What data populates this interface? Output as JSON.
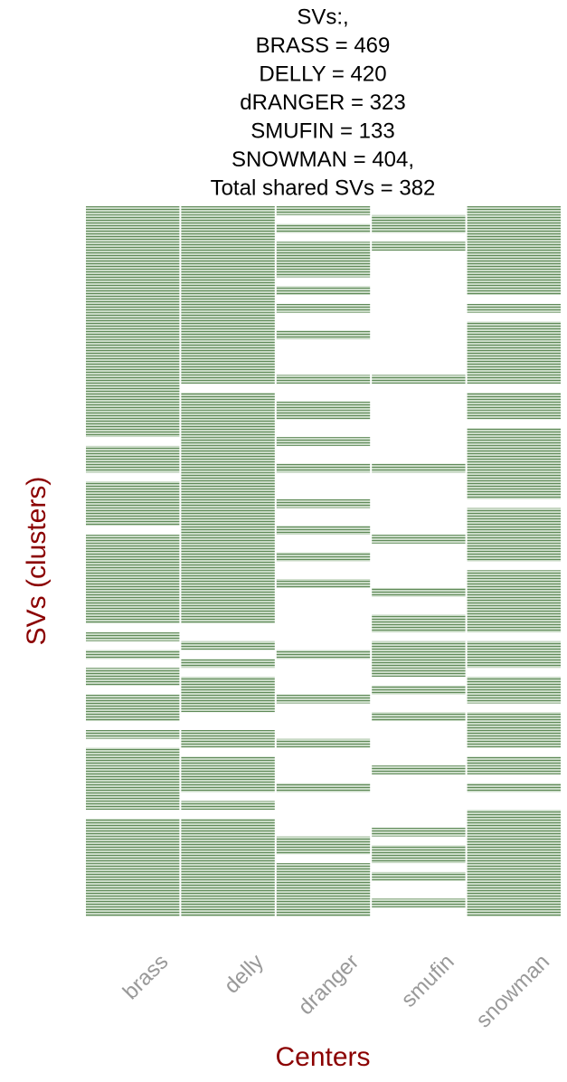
{
  "chart_data": {
    "type": "heatmap",
    "title": [
      "SVs:,",
      "BRASS = 469",
      "DELLY = 420",
      "dRANGER = 323",
      "SMUFIN = 133",
      "SNOWMAN = 404,",
      "Total shared SVs = 382"
    ],
    "ylabel": "SVs (clusters)",
    "xlabel": "Centers",
    "categories": [
      "brass",
      "delly",
      "dranger",
      "smufin",
      "snowman"
    ],
    "color": "#5f8a58",
    "values": [
      [
        1,
        1,
        1,
        1,
        1,
        1,
        1,
        1,
        1,
        1,
        1,
        1,
        1,
        1,
        1,
        1,
        1,
        1,
        1,
        1,
        1,
        1,
        1,
        1,
        1,
        1,
        0,
        1,
        1,
        1,
        0,
        1,
        1,
        1,
        1,
        1,
        0,
        1,
        1,
        1,
        1,
        1,
        1,
        1,
        1,
        1,
        1,
        0,
        1,
        0,
        1,
        0,
        1,
        1,
        0,
        1,
        1,
        1,
        0,
        1,
        0,
        1,
        1,
        1,
        1,
        1,
        1,
        1,
        0,
        1,
        1,
        1,
        1,
        1,
        1,
        1,
        1,
        1,
        1,
        1
      ],
      [
        1,
        1,
        1,
        1,
        1,
        1,
        1,
        1,
        1,
        1,
        1,
        1,
        1,
        1,
        1,
        1,
        1,
        1,
        1,
        1,
        0,
        1,
        1,
        1,
        1,
        1,
        1,
        1,
        1,
        1,
        1,
        1,
        1,
        1,
        1,
        1,
        1,
        1,
        1,
        1,
        1,
        1,
        1,
        1,
        1,
        1,
        1,
        0,
        0,
        1,
        0,
        1,
        0,
        1,
        1,
        1,
        1,
        0,
        0,
        1,
        1,
        0,
        1,
        1,
        1,
        1,
        0,
        1,
        0,
        1,
        1,
        1,
        1,
        1,
        1,
        1,
        1,
        1,
        1,
        1
      ],
      [
        1,
        0,
        1,
        0,
        1,
        1,
        1,
        1,
        0,
        1,
        0,
        1,
        0,
        0,
        1,
        0,
        0,
        0,
        0,
        1,
        0,
        0,
        1,
        1,
        0,
        0,
        1,
        0,
        0,
        1,
        0,
        0,
        0,
        1,
        0,
        0,
        1,
        0,
        0,
        1,
        0,
        0,
        1,
        0,
        0,
        0,
        0,
        0,
        0,
        0,
        1,
        0,
        0,
        0,
        0,
        1,
        0,
        0,
        0,
        0,
        1,
        0,
        0,
        0,
        0,
        1,
        0,
        0,
        0,
        0,
        0,
        1,
        1,
        0,
        1,
        1,
        1,
        1,
        1,
        1
      ],
      [
        0,
        1,
        1,
        0,
        1,
        0,
        0,
        0,
        0,
        0,
        0,
        0,
        0,
        0,
        0,
        0,
        0,
        0,
        0,
        1,
        0,
        0,
        0,
        0,
        0,
        0,
        0,
        0,
        0,
        1,
        0,
        0,
        0,
        0,
        0,
        0,
        0,
        1,
        0,
        0,
        0,
        0,
        0,
        1,
        0,
        0,
        1,
        1,
        0,
        1,
        1,
        1,
        1,
        0,
        1,
        0,
        0,
        1,
        0,
        0,
        0,
        0,
        0,
        1,
        0,
        0,
        0,
        0,
        0,
        0,
        1,
        0,
        1,
        1,
        0,
        1,
        0,
        0,
        1,
        0
      ],
      [
        1,
        1,
        1,
        1,
        1,
        1,
        1,
        1,
        1,
        1,
        0,
        1,
        0,
        1,
        1,
        1,
        1,
        1,
        1,
        1,
        0,
        1,
        1,
        1,
        0,
        1,
        1,
        1,
        1,
        1,
        1,
        1,
        1,
        0,
        1,
        1,
        1,
        1,
        1,
        1,
        0,
        1,
        1,
        1,
        1,
        1,
        1,
        1,
        0,
        1,
        1,
        1,
        0,
        1,
        1,
        1,
        0,
        1,
        1,
        1,
        1,
        0,
        1,
        1,
        0,
        1,
        0,
        0,
        1,
        1,
        1,
        1,
        1,
        1,
        1,
        1,
        1,
        1,
        1,
        1
      ]
    ]
  }
}
